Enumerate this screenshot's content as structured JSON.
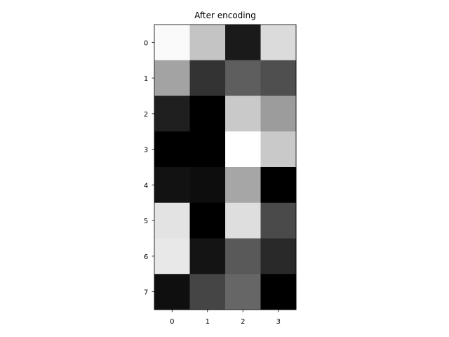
{
  "chart_data": {
    "type": "heatmap",
    "title": "After encoding",
    "xlabel": "",
    "ylabel": "",
    "colormap": "gray",
    "x_ticks": [
      "0",
      "1",
      "2",
      "3"
    ],
    "y_ticks": [
      "0",
      "1",
      "2",
      "3",
      "4",
      "5",
      "6",
      "7"
    ],
    "values": [
      [
        0.98,
        0.77,
        0.1,
        0.86
      ],
      [
        0.64,
        0.2,
        0.37,
        0.31
      ],
      [
        0.12,
        0.0,
        0.79,
        0.61
      ],
      [
        0.0,
        0.0,
        1.0,
        0.79
      ],
      [
        0.07,
        0.05,
        0.65,
        0.0
      ],
      [
        0.89,
        0.0,
        0.87,
        0.29
      ],
      [
        0.91,
        0.08,
        0.35,
        0.16
      ],
      [
        0.06,
        0.27,
        0.4,
        0.0
      ]
    ]
  }
}
